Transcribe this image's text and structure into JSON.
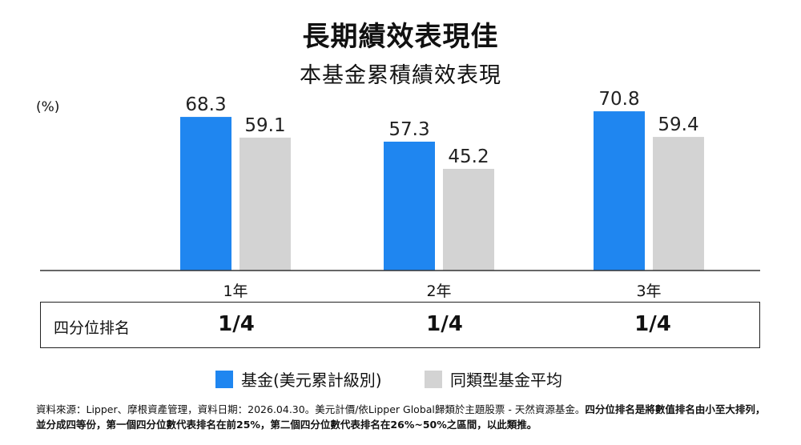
{
  "title": "長期績效表現佳",
  "subtitle": "本基金累積績效表現",
  "unit_label": "(%)",
  "colors": {
    "fund": "#1F86F0",
    "peer": "#D3D3D3",
    "axis": "#333333"
  },
  "chart_data": {
    "type": "bar",
    "categories": [
      "1年",
      "2年",
      "3年"
    ],
    "series": [
      {
        "name": "基金(美元累計級別)",
        "values": [
          68.3,
          57.3,
          70.8
        ]
      },
      {
        "name": "同類型基金平均",
        "values": [
          59.1,
          45.2,
          59.4
        ]
      }
    ],
    "value_labels": [
      [
        "68.3",
        "57.3",
        "70.8"
      ],
      [
        "59.1",
        "45.2",
        "59.4"
      ]
    ],
    "ylabel": "(%)",
    "ylim": [
      0,
      80
    ],
    "grid": false,
    "legend": "bottom"
  },
  "ranking": {
    "label": "四分位排名",
    "values": [
      "1/4",
      "1/4",
      "1/4"
    ]
  },
  "legend": {
    "fund": "基金(美元累計級別)",
    "peer": "同類型基金平均"
  },
  "footnote": {
    "part1": "資料來源：Lipper、摩根資產管理，資料日期：2026.04.30。美元計價/依Lipper Global歸類於主題股票 - 天然資源基金。",
    "part2": "四分位排名是將數值排名由小至大排列，並分成四等份，第一個四分位數代表排名在前25%，第二個四分位數代表排名在26%~50%之區間，以此類推。"
  }
}
